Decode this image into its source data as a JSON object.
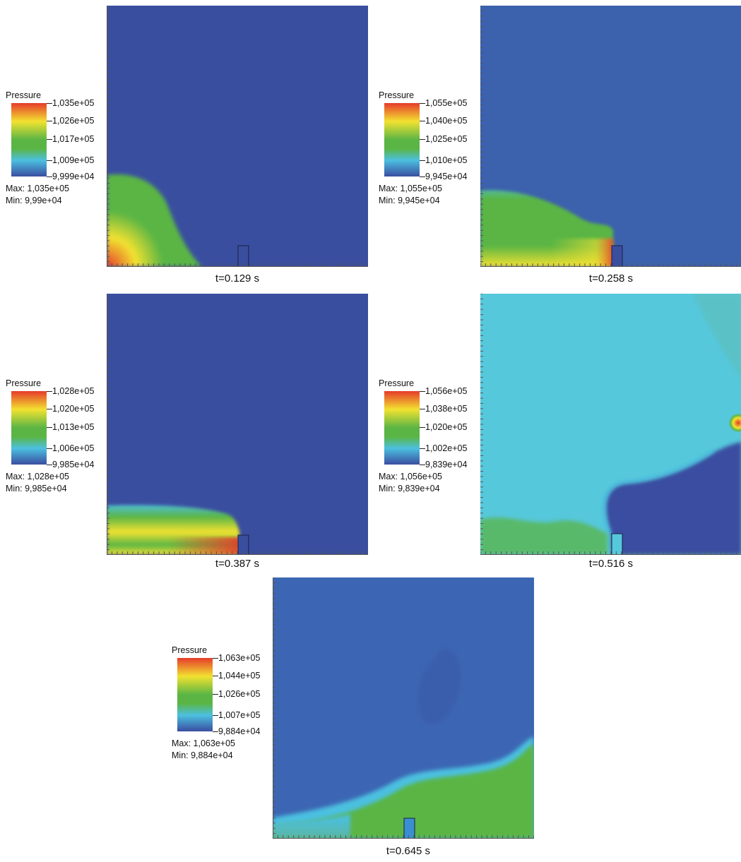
{
  "colors": {
    "low": "#3a4ea0",
    "mid_low": "#4cc0e0",
    "mid": "#5ab544",
    "mid_high": "#f2e230",
    "high": "#e63b2a"
  },
  "chart_data": [
    {
      "type": "heatmap",
      "time": "t=0.129 s",
      "legend": {
        "title": "Pressure",
        "ticks": [
          "1,035e+05",
          "1,026e+05",
          "1,017e+05",
          "1,009e+05",
          "9,999e+04"
        ],
        "max": "Max: 1,035e+05",
        "min": "Min: 9,99e+04"
      }
    },
    {
      "type": "heatmap",
      "time": "t=0.258 s",
      "legend": {
        "title": "Pressure",
        "ticks": [
          "1,055e+05",
          "1,040e+05",
          "1,025e+05",
          "1,010e+05",
          "9,945e+04"
        ],
        "max": "Max: 1,055e+05",
        "min": "Min: 9,945e+04"
      }
    },
    {
      "type": "heatmap",
      "time": "t=0.387 s",
      "legend": {
        "title": "Pressure",
        "ticks": [
          "1,028e+05",
          "1,020e+05",
          "1,013e+05",
          "1,006e+05",
          "9,985e+04"
        ],
        "max": "Max: 1,028e+05",
        "min": "Min: 9,985e+04"
      }
    },
    {
      "type": "heatmap",
      "time": "t=0.516 s",
      "legend": {
        "title": "Pressure",
        "ticks": [
          "1,056e+05",
          "1,038e+05",
          "1,020e+05",
          "1,002e+05",
          "9,839e+04"
        ],
        "max": "Max: 1,056e+05",
        "min": "Min: 9,839e+04"
      }
    },
    {
      "type": "heatmap",
      "time": "t=0.645 s",
      "legend": {
        "title": "Pressure",
        "ticks": [
          "1,063e+05",
          "1,044e+05",
          "1,026e+05",
          "1,007e+05",
          "9,884e+04"
        ],
        "max": "Max: 1,063e+05",
        "min": "Min: 9,884e+04"
      }
    }
  ]
}
